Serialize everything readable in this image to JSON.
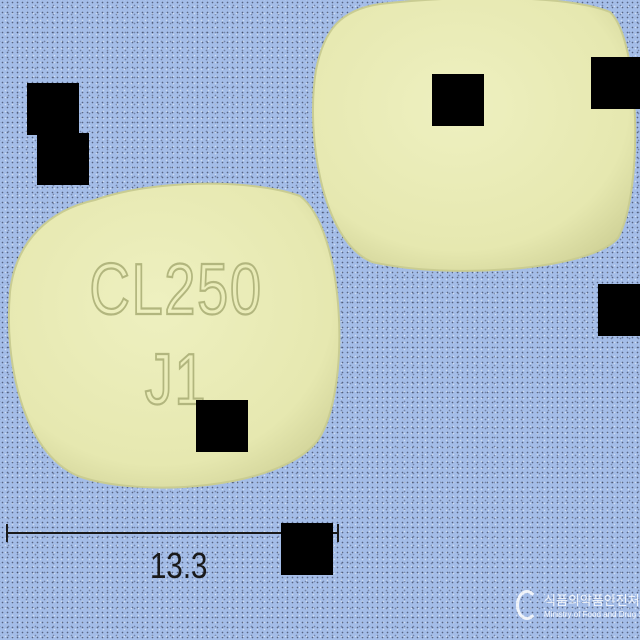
{
  "image": {
    "background_color": "#a4bde8",
    "pill_color": "#e8eab4",
    "pill_shadow_color": "#d2d49a",
    "imprint_color": "#b9bd86",
    "scale_bar_color": "#1a1a1a",
    "occluder_color": "#000000"
  },
  "pills": {
    "front": {
      "imprint_line1": "CL250",
      "imprint_line2": "J1"
    }
  },
  "scale_bar": {
    "label": "13.3"
  },
  "watermark": {
    "korean": "식품의약품안전처",
    "english": "Ministry of Food and Drug Safety"
  }
}
